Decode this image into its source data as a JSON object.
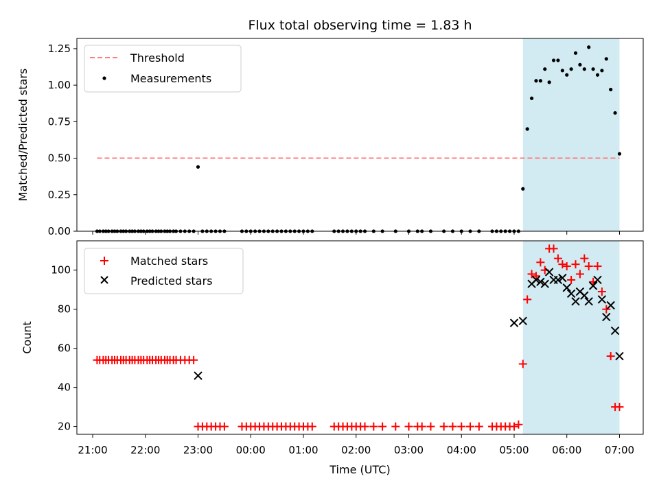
{
  "chart_data": [
    {
      "type": "scatter",
      "title": "Flux total observing time = 1.83 h",
      "ylabel": "Matched/Predicted stars",
      "xlim": [
        "21:00",
        "07:00"
      ],
      "x_range_hours": [
        -3.3,
        7.45
      ],
      "ylim": [
        0,
        1.32
      ],
      "yticks": [
        0.0,
        0.25,
        0.5,
        0.75,
        1.0,
        1.25
      ],
      "ytick_labels": [
        "0.00",
        "0.25",
        "0.50",
        "0.75",
        "1.00",
        "1.25"
      ],
      "threshold": {
        "name": "Threshold",
        "value": 0.5,
        "color": "#ff7f7f",
        "x_from": "21:05",
        "x_to": "07:00"
      },
      "highlight": {
        "x_from": "05:10",
        "x_to": "07:00",
        "color": "#add8e6"
      },
      "legend": [
        "Threshold",
        "Measurements"
      ],
      "legend_loc": "upper-left",
      "series": [
        {
          "name": "Measurements",
          "color": "#000000",
          "x": [
            "21:05",
            "21:08",
            "21:12",
            "21:15",
            "21:18",
            "21:22",
            "21:25",
            "21:28",
            "21:32",
            "21:35",
            "21:38",
            "21:42",
            "21:45",
            "21:48",
            "21:52",
            "21:55",
            "21:58",
            "22:02",
            "22:05",
            "22:08",
            "22:12",
            "22:15",
            "22:18",
            "22:22",
            "22:25",
            "22:28",
            "22:32",
            "22:35",
            "22:40",
            "22:45",
            "22:50",
            "22:55",
            "23:00",
            "23:05",
            "23:10",
            "23:15",
            "23:20",
            "23:25",
            "23:30",
            "23:50",
            "23:55",
            "00:00",
            "00:05",
            "00:10",
            "00:15",
            "00:20",
            "00:25",
            "00:30",
            "00:35",
            "00:40",
            "00:45",
            "00:50",
            "00:55",
            "01:00",
            "01:05",
            "01:10",
            "01:35",
            "01:40",
            "01:45",
            "01:50",
            "01:55",
            "02:00",
            "02:05",
            "02:10",
            "02:20",
            "02:30",
            "02:45",
            "03:00",
            "03:10",
            "03:15",
            "03:25",
            "03:40",
            "03:50",
            "04:00",
            "04:10",
            "04:20",
            "04:35",
            "04:40",
            "04:45",
            "04:50",
            "04:55",
            "05:00",
            "05:05",
            "05:10",
            "05:15",
            "05:20",
            "05:25",
            "05:30",
            "05:35",
            "05:40",
            "05:45",
            "05:50",
            "05:55",
            "06:00",
            "06:05",
            "06:10",
            "06:15",
            "06:20",
            "06:25",
            "06:30",
            "06:35",
            "06:40",
            "06:45",
            "06:50",
            "06:55",
            "07:00"
          ],
          "y": [
            0,
            0,
            0,
            0,
            0,
            0,
            0,
            0,
            0,
            0,
            0,
            0,
            0,
            0,
            0,
            0,
            0,
            0,
            0,
            0,
            0,
            0,
            0,
            0,
            0,
            0,
            0,
            0,
            0,
            0,
            0,
            0,
            0.44,
            0,
            0,
            0,
            0,
            0,
            0,
            0,
            0,
            0,
            0,
            0,
            0,
            0,
            0,
            0,
            0,
            0,
            0,
            0,
            0,
            0,
            0,
            0,
            0,
            0,
            0,
            0,
            0,
            0,
            0,
            0,
            0,
            0,
            0,
            0,
            0,
            0,
            0,
            0,
            0,
            0,
            0,
            0,
            0,
            0,
            0,
            0,
            0,
            0,
            0,
            0.29,
            0.7,
            0.91,
            1.03,
            1.03,
            1.11,
            1.02,
            1.17,
            1.17,
            1.1,
            1.07,
            1.11,
            1.22,
            1.14,
            1.11,
            1.26,
            1.11,
            1.07,
            1.1,
            1.18,
            0.97,
            0.81,
            0.53
          ]
        }
      ]
    },
    {
      "type": "scatter",
      "ylabel": "Count",
      "xlabel": "Time (UTC)",
      "xlim": [
        "21:00",
        "07:00"
      ],
      "x_range_hours": [
        -3.3,
        7.45
      ],
      "ylim": [
        16,
        115
      ],
      "yticks": [
        20,
        40,
        60,
        80,
        100
      ],
      "ytick_labels": [
        "20",
        "40",
        "60",
        "80",
        "100"
      ],
      "xticks": [
        "21:00",
        "22:00",
        "23:00",
        "00:00",
        "01:00",
        "02:00",
        "03:00",
        "04:00",
        "05:00",
        "06:00",
        "07:00"
      ],
      "highlight": {
        "x_from": "05:10",
        "x_to": "07:00",
        "color": "#add8e6"
      },
      "legend": [
        "Matched stars",
        "Predicted stars"
      ],
      "legend_loc": "upper-left",
      "series": [
        {
          "name": "Matched stars",
          "marker": "plus",
          "color": "#ff0000",
          "x": [
            "21:05",
            "21:08",
            "21:12",
            "21:15",
            "21:18",
            "21:22",
            "21:25",
            "21:28",
            "21:32",
            "21:35",
            "21:38",
            "21:42",
            "21:45",
            "21:48",
            "21:52",
            "21:55",
            "21:58",
            "22:02",
            "22:05",
            "22:08",
            "22:12",
            "22:15",
            "22:18",
            "22:22",
            "22:25",
            "22:28",
            "22:32",
            "22:35",
            "22:40",
            "22:45",
            "22:50",
            "22:55",
            "23:00",
            "23:05",
            "23:10",
            "23:15",
            "23:20",
            "23:25",
            "23:30",
            "23:50",
            "23:55",
            "00:00",
            "00:05",
            "00:10",
            "00:15",
            "00:20",
            "00:25",
            "00:30",
            "00:35",
            "00:40",
            "00:45",
            "00:50",
            "00:55",
            "01:00",
            "01:05",
            "01:10",
            "01:35",
            "01:40",
            "01:45",
            "01:50",
            "01:55",
            "02:00",
            "02:05",
            "02:10",
            "02:20",
            "02:30",
            "02:45",
            "03:00",
            "03:10",
            "03:15",
            "03:25",
            "03:40",
            "03:50",
            "04:00",
            "04:10",
            "04:20",
            "04:35",
            "04:40",
            "04:45",
            "04:50",
            "04:55",
            "05:00",
            "05:05",
            "05:10",
            "05:15",
            "05:20",
            "05:25",
            "05:30",
            "05:35",
            "05:40",
            "05:45",
            "05:50",
            "05:55",
            "06:00",
            "06:05",
            "06:10",
            "06:15",
            "06:20",
            "06:25",
            "06:30",
            "06:35",
            "06:40",
            "06:45",
            "06:50",
            "06:55",
            "07:00"
          ],
          "y": [
            54,
            54,
            54,
            54,
            54,
            54,
            54,
            54,
            54,
            54,
            54,
            54,
            54,
            54,
            54,
            54,
            54,
            54,
            54,
            54,
            54,
            54,
            54,
            54,
            54,
            54,
            54,
            54,
            54,
            54,
            54,
            54,
            20,
            20,
            20,
            20,
            20,
            20,
            20,
            20,
            20,
            20,
            20,
            20,
            20,
            20,
            20,
            20,
            20,
            20,
            20,
            20,
            20,
            20,
            20,
            20,
            20,
            20,
            20,
            20,
            20,
            20,
            20,
            20,
            20,
            20,
            20,
            20,
            20,
            20,
            20,
            20,
            20,
            20,
            20,
            20,
            20,
            20,
            20,
            20,
            20,
            20,
            21,
            52,
            85,
            98,
            97,
            104,
            100,
            111,
            111,
            106,
            103,
            102,
            95,
            103,
            98,
            106,
            102,
            94,
            102,
            89,
            80,
            56,
            30,
            30
          ]
        },
        {
          "name": "Predicted stars",
          "marker": "x",
          "color": "#000000",
          "x": [
            "23:00",
            "05:00",
            "05:10",
            "05:20",
            "05:25",
            "05:30",
            "05:35",
            "05:40",
            "05:45",
            "05:50",
            "05:55",
            "06:00",
            "06:05",
            "06:10",
            "06:15",
            "06:20",
            "06:25",
            "06:30",
            "06:35",
            "06:40",
            "06:45",
            "06:50",
            "06:55",
            "07:00"
          ],
          "y": [
            46,
            73,
            74,
            93,
            95,
            94,
            93,
            99,
            95,
            95,
            96,
            91,
            88,
            84,
            89,
            87,
            84,
            92,
            95,
            85,
            76,
            82,
            69,
            56
          ]
        }
      ]
    }
  ]
}
